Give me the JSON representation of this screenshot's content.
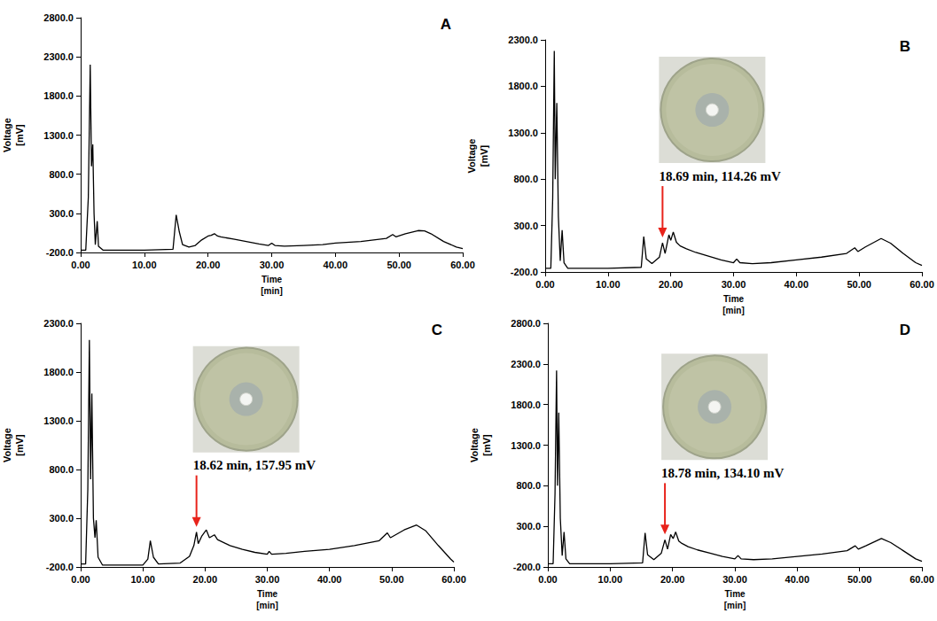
{
  "chart_data": [
    {
      "type": "line",
      "title": "A",
      "x_label": "Time\n[min]",
      "y_label": "Voltage\n[mV]",
      "color": "#000000",
      "grid": false,
      "xlim": [
        0,
        60
      ],
      "xticks": [
        {
          "value": 0,
          "label": "0.00"
        },
        {
          "value": 10,
          "label": "10.00"
        },
        {
          "value": 20,
          "label": "20.00"
        },
        {
          "value": 30,
          "label": "30.00"
        },
        {
          "value": 40,
          "label": "40.00"
        },
        {
          "value": 50,
          "label": "50.00"
        },
        {
          "value": 60,
          "label": "60.00"
        }
      ],
      "ylim": [
        -200,
        2800
      ],
      "yticks": [
        {
          "value": -200,
          "label": "-200.0"
        },
        {
          "value": 300,
          "label": "300.0"
        },
        {
          "value": 800,
          "label": "800.0"
        },
        {
          "value": 1300,
          "label": "1300.0"
        },
        {
          "value": 1800,
          "label": "1800.0"
        },
        {
          "value": 2300,
          "label": "2300.0"
        },
        {
          "value": 2800,
          "label": "2800.0"
        }
      ],
      "x": [
        0,
        0.8,
        1.2,
        1.5,
        1.7,
        1.9,
        2.1,
        2.3,
        2.6,
        2.8,
        3.5,
        10,
        14.5,
        15.0,
        15.5,
        16,
        17,
        18,
        19,
        20,
        20.5,
        21,
        21.5,
        22,
        24,
        26,
        28,
        29.5,
        30,
        30.5,
        32,
        35,
        38,
        40,
        44,
        48,
        49,
        49.5,
        51,
        53,
        54,
        55,
        57,
        59,
        60
      ],
      "values": [
        -170,
        -170,
        500,
        2200,
        900,
        1180,
        300,
        -100,
        200,
        -120,
        -170,
        -170,
        -160,
        280,
        60,
        -100,
        -130,
        -110,
        -40,
        10,
        20,
        40,
        10,
        0,
        -30,
        -60,
        -90,
        -110,
        -80,
        -110,
        -120,
        -110,
        -100,
        -80,
        -60,
        -20,
        30,
        0,
        40,
        80,
        75,
        40,
        -60,
        -130,
        -150
      ]
    },
    {
      "type": "line",
      "title": "B",
      "x_label": "Time\n[min]",
      "y_label": "Voltage\n[mV]",
      "color": "#000000",
      "grid": false,
      "xlim": [
        0,
        60
      ],
      "xticks": [
        {
          "value": 0,
          "label": "0.00"
        },
        {
          "value": 10,
          "label": "10.00"
        },
        {
          "value": 20,
          "label": "20.00"
        },
        {
          "value": 30,
          "label": "30.00"
        },
        {
          "value": 40,
          "label": "40.00"
        },
        {
          "value": 50,
          "label": "50.00"
        },
        {
          "value": 60,
          "label": "60.00"
        }
      ],
      "ylim": [
        -200,
        2300
      ],
      "yticks": [
        {
          "value": -200,
          "label": "-200.0"
        },
        {
          "value": 300,
          "label": "300.0"
        },
        {
          "value": 800,
          "label": "800.0"
        },
        {
          "value": 1300,
          "label": "1300.0"
        },
        {
          "value": 1800,
          "label": "1800.0"
        },
        {
          "value": 2300,
          "label": "2300.0"
        }
      ],
      "x": [
        0,
        0.9,
        1.2,
        1.45,
        1.6,
        1.85,
        2.1,
        2.4,
        2.7,
        3.0,
        3.6,
        10,
        15.3,
        15.7,
        16.1,
        17,
        18.2,
        18.69,
        19.1,
        19.7,
        20.0,
        20.4,
        20.9,
        21.5,
        22.5,
        24,
        26,
        28,
        30,
        30.5,
        31,
        33,
        36,
        40,
        44,
        48,
        49.3,
        49.8,
        51,
        53.5,
        55,
        57,
        59,
        60
      ],
      "values": [
        -160,
        -160,
        600,
        2180,
        800,
        1620,
        400,
        -80,
        250,
        -100,
        -160,
        -160,
        -150,
        180,
        -60,
        -110,
        -40,
        114.26,
        0,
        200,
        140,
        230,
        120,
        80,
        50,
        10,
        -30,
        -70,
        -100,
        -60,
        -100,
        -110,
        -100,
        -70,
        -40,
        0,
        60,
        20,
        70,
        160,
        110,
        0,
        -100,
        -130
      ],
      "annotation": {
        "text": "18.69 min, 114.26 mV",
        "x": 18.69,
        "y": 114.26
      }
    },
    {
      "type": "line",
      "title": "C",
      "x_label": "Time\n[min]",
      "y_label": "Voltage\n[mV]",
      "color": "#000000",
      "grid": false,
      "xlim": [
        0,
        60
      ],
      "xticks": [
        {
          "value": 0,
          "label": "0.00"
        },
        {
          "value": 10,
          "label": "10.00"
        },
        {
          "value": 20,
          "label": "20.00"
        },
        {
          "value": 30,
          "label": "30.00"
        },
        {
          "value": 40,
          "label": "40.00"
        },
        {
          "value": 50,
          "label": "50.00"
        },
        {
          "value": 60,
          "label": "60.00"
        }
      ],
      "ylim": [
        -200,
        2300
      ],
      "yticks": [
        {
          "value": -200,
          "label": "-200.0"
        },
        {
          "value": 300,
          "label": "300.0"
        },
        {
          "value": 800,
          "label": "800.0"
        },
        {
          "value": 1300,
          "label": "1300.0"
        },
        {
          "value": 1800,
          "label": "1800.0"
        },
        {
          "value": 2300,
          "label": "2300.0"
        }
      ],
      "x": [
        0,
        0.8,
        1.15,
        1.4,
        1.6,
        1.8,
        2.05,
        2.3,
        2.5,
        2.8,
        3.5,
        10,
        10.8,
        11.2,
        11.7,
        12.5,
        16,
        17.5,
        18.2,
        18.62,
        18.9,
        19.5,
        20.2,
        20.7,
        21.5,
        22,
        24,
        26,
        28,
        30,
        30.3,
        30.7,
        33,
        36,
        40,
        44,
        48,
        49.3,
        49.8,
        52,
        54,
        55.5,
        57.5,
        59.5,
        60
      ],
      "values": [
        -170,
        -170,
        600,
        2130,
        700,
        1580,
        300,
        100,
        280,
        -100,
        -180,
        -180,
        -120,
        70,
        -100,
        -170,
        -160,
        -90,
        20,
        157.95,
        40,
        120,
        180,
        100,
        130,
        80,
        20,
        -20,
        -50,
        -70,
        -40,
        -70,
        -60,
        -40,
        -20,
        20,
        70,
        150,
        100,
        180,
        230,
        170,
        20,
        -120,
        -150
      ],
      "annotation": {
        "text": "18.62 min, 157.95 mV",
        "x": 18.62,
        "y": 157.95
      }
    },
    {
      "type": "line",
      "title": "D",
      "x_label": "Time\n[min]",
      "y_label": "Voltage\n[mV]",
      "color": "#000000",
      "grid": false,
      "xlim": [
        0,
        60
      ],
      "xticks": [
        {
          "value": 0,
          "label": "0.00"
        },
        {
          "value": 10,
          "label": "10.00"
        },
        {
          "value": 20,
          "label": "20.00"
        },
        {
          "value": 30,
          "label": "30.00"
        },
        {
          "value": 40,
          "label": "40.00"
        },
        {
          "value": 50,
          "label": "50.00"
        },
        {
          "value": 60,
          "label": "60.00"
        }
      ],
      "ylim": [
        -200,
        2800
      ],
      "yticks": [
        {
          "value": -200,
          "label": "-200.0"
        },
        {
          "value": 300,
          "label": "300.0"
        },
        {
          "value": 800,
          "label": "800.0"
        },
        {
          "value": 1300,
          "label": "1300.0"
        },
        {
          "value": 1800,
          "label": "1800.0"
        },
        {
          "value": 2300,
          "label": "2300.0"
        },
        {
          "value": 2800,
          "label": "2800.0"
        }
      ],
      "x": [
        0,
        0.85,
        1.15,
        1.4,
        1.55,
        1.75,
        2.0,
        2.3,
        2.6,
        2.9,
        3.5,
        10,
        15.2,
        15.6,
        16.0,
        17,
        18.2,
        18.78,
        19.2,
        19.7,
        20.1,
        20.5,
        21,
        21.5,
        22.5,
        24,
        26,
        28,
        30,
        30.5,
        31,
        33,
        36,
        40,
        44,
        48,
        49.3,
        49.8,
        51,
        53.5,
        55,
        57,
        59,
        60
      ],
      "values": [
        -160,
        -160,
        700,
        2220,
        800,
        1700,
        400,
        -60,
        230,
        -100,
        -160,
        -160,
        -150,
        220,
        -50,
        -110,
        -30,
        134.1,
        20,
        200,
        150,
        230,
        120,
        90,
        50,
        10,
        -30,
        -70,
        -100,
        -60,
        -100,
        -110,
        -100,
        -70,
        -40,
        0,
        60,
        20,
        60,
        150,
        100,
        0,
        -100,
        -130
      ],
      "annotation": {
        "text": "18.78 min, 134.10 mV",
        "x": 18.78,
        "y": 134.1
      }
    }
  ]
}
